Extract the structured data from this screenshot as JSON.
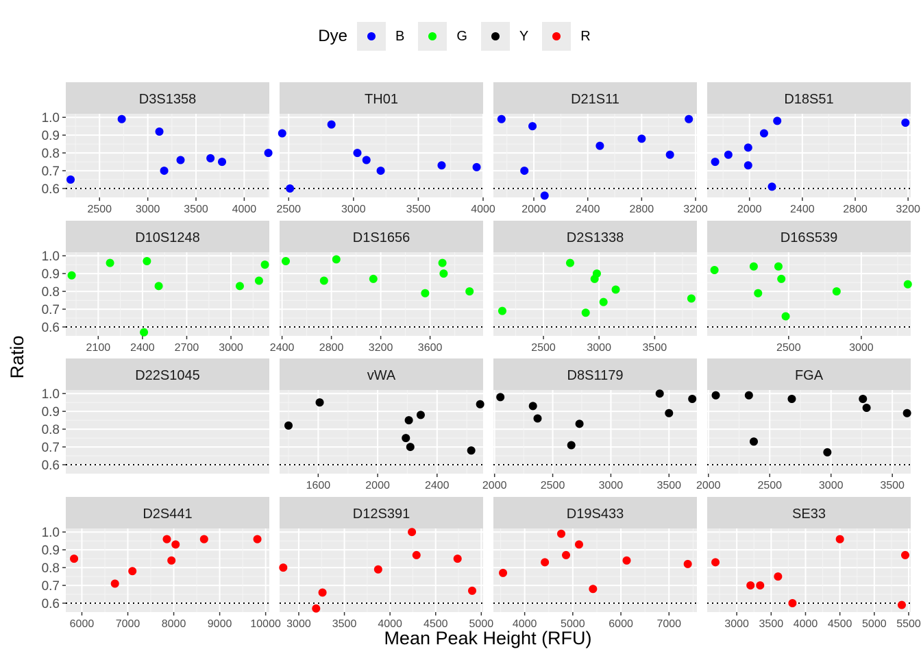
{
  "chart_data": {
    "type": "scatter",
    "xlabel": "Mean Peak Height (RFU)",
    "ylabel": "Ratio",
    "threshold": 0.6,
    "ylim": [
      0.55,
      1.02
    ],
    "yticks": [
      0.6,
      0.7,
      0.8,
      0.9,
      1.0
    ],
    "ytick_labels": [
      "0.6",
      "0.7",
      "0.8",
      "0.9",
      "1.0"
    ],
    "legend": {
      "title": "Dye",
      "position": "top",
      "items": [
        {
          "label": "B",
          "color": "#0000ff"
        },
        {
          "label": "G",
          "color": "#00ff00"
        },
        {
          "label": "Y",
          "color": "#000000"
        },
        {
          "label": "R",
          "color": "#ff0000"
        }
      ]
    },
    "panels": [
      {
        "title": "D3S1358",
        "dye": "B",
        "xlim": [
          2150,
          4260
        ],
        "xticks": [
          2500,
          3000,
          3500,
          4000
        ],
        "xtick_labels": [
          "2500",
          "3000",
          "3500",
          "4000"
        ],
        "points": [
          [
            2200,
            0.65
          ],
          [
            2730,
            0.99
          ],
          [
            3120,
            0.92
          ],
          [
            3170,
            0.7
          ],
          [
            3340,
            0.76
          ],
          [
            3650,
            0.77
          ],
          [
            3770,
            0.75
          ],
          [
            4250,
            0.8
          ]
        ]
      },
      {
        "title": "TH01",
        "dye": "B",
        "xlim": [
          2430,
          4000
        ],
        "xticks": [
          2500,
          3000,
          3500,
          4000
        ],
        "xtick_labels": [
          "2500",
          "3000",
          "3500",
          "4000"
        ],
        "points": [
          [
            2450,
            0.91
          ],
          [
            2510,
            0.6
          ],
          [
            2830,
            0.96
          ],
          [
            3030,
            0.8
          ],
          [
            3100,
            0.76
          ],
          [
            3210,
            0.7
          ],
          [
            3680,
            0.73
          ],
          [
            3950,
            0.72
          ]
        ]
      },
      {
        "title": "D21S11",
        "dye": "B",
        "xlim": [
          1700,
          3210
        ],
        "xticks": [
          2000,
          2400,
          2800,
          3200
        ],
        "xtick_labels": [
          "2000",
          "2400",
          "2800",
          "3200"
        ],
        "points": [
          [
            1760,
            0.99
          ],
          [
            1930,
            0.7
          ],
          [
            1990,
            0.95
          ],
          [
            2080,
            0.56
          ],
          [
            2490,
            0.84
          ],
          [
            2800,
            0.88
          ],
          [
            3010,
            0.79
          ],
          [
            3150,
            0.99
          ]
        ]
      },
      {
        "title": "D18S51",
        "dye": "B",
        "xlim": [
          1680,
          3220
        ],
        "xticks": [
          2000,
          2400,
          2800,
          3200
        ],
        "xtick_labels": [
          "2000",
          "2400",
          "2800",
          "3200"
        ],
        "points": [
          [
            1740,
            0.75
          ],
          [
            1840,
            0.79
          ],
          [
            1990,
            0.83
          ],
          [
            1990,
            0.73
          ],
          [
            2110,
            0.91
          ],
          [
            2170,
            0.61
          ],
          [
            2210,
            0.98
          ],
          [
            3180,
            0.97
          ]
        ]
      },
      {
        "title": "D10S1248",
        "dye": "G",
        "xlim": [
          1880,
          3260
        ],
        "xticks": [
          2100,
          2400,
          2700,
          3000
        ],
        "xtick_labels": [
          "2100",
          "2400",
          "2700",
          "3000"
        ],
        "points": [
          [
            1920,
            0.89
          ],
          [
            2180,
            0.96
          ],
          [
            2410,
            0.57
          ],
          [
            2430,
            0.97
          ],
          [
            2510,
            0.83
          ],
          [
            3060,
            0.83
          ],
          [
            3190,
            0.86
          ],
          [
            3230,
            0.95
          ]
        ]
      },
      {
        "title": "D1S1656",
        "dye": "G",
        "xlim": [
          2380,
          4030
        ],
        "xticks": [
          2400,
          2800,
          3200,
          3600
        ],
        "xtick_labels": [
          "2400",
          "2800",
          "3200",
          "3600"
        ],
        "points": [
          [
            2430,
            0.97
          ],
          [
            2740,
            0.86
          ],
          [
            2840,
            0.98
          ],
          [
            3140,
            0.87
          ],
          [
            3560,
            0.79
          ],
          [
            3700,
            0.96
          ],
          [
            3710,
            0.9
          ],
          [
            3920,
            0.8
          ]
        ]
      },
      {
        "title": "D2S1338",
        "dye": "G",
        "xlim": [
          2050,
          3880
        ],
        "xticks": [
          2500,
          3000,
          3500
        ],
        "xtick_labels": [
          "2500",
          "3000",
          "3500"
        ],
        "points": [
          [
            2130,
            0.69
          ],
          [
            2740,
            0.96
          ],
          [
            2880,
            0.68
          ],
          [
            2960,
            0.87
          ],
          [
            2980,
            0.9
          ],
          [
            3040,
            0.74
          ],
          [
            3150,
            0.81
          ],
          [
            3830,
            0.76
          ]
        ]
      },
      {
        "title": "D16S539",
        "dye": "G",
        "xlim": [
          1940,
          3340
        ],
        "xticks": [
          2500,
          3000
        ],
        "xtick_labels": [
          "2500",
          "3000"
        ],
        "points": [
          [
            1990,
            0.92
          ],
          [
            2260,
            0.94
          ],
          [
            2290,
            0.79
          ],
          [
            2430,
            0.94
          ],
          [
            2450,
            0.87
          ],
          [
            2480,
            0.66
          ],
          [
            2830,
            0.8
          ],
          [
            3320,
            0.84
          ]
        ]
      },
      {
        "title": "D22S1045",
        "dye": "Y",
        "xlim": null,
        "xticks": [],
        "xtick_labels": [],
        "points": []
      },
      {
        "title": "vWA",
        "dye": "Y",
        "xlim": [
          1340,
          2710
        ],
        "xticks": [
          1600,
          2000,
          2400
        ],
        "xtick_labels": [
          "1600",
          "2000",
          "2400"
        ],
        "points": [
          [
            1400,
            0.82
          ],
          [
            1610,
            0.95
          ],
          [
            2190,
            0.75
          ],
          [
            2210,
            0.85
          ],
          [
            2220,
            0.7
          ],
          [
            2290,
            0.88
          ],
          [
            2630,
            0.68
          ],
          [
            2690,
            0.94
          ]
        ]
      },
      {
        "title": "D8S1179",
        "dye": "Y",
        "xlim": [
          1990,
          3740
        ],
        "xticks": [
          2000,
          2500,
          3000,
          3500
        ],
        "xtick_labels": [
          "2000",
          "2500",
          "3000",
          "3500"
        ],
        "points": [
          [
            2050,
            0.98
          ],
          [
            2330,
            0.93
          ],
          [
            2370,
            0.86
          ],
          [
            2660,
            0.71
          ],
          [
            2730,
            0.83
          ],
          [
            3420,
            1.0
          ],
          [
            3500,
            0.89
          ],
          [
            3700,
            0.97
          ]
        ]
      },
      {
        "title": "FGA",
        "dye": "Y",
        "xlim": [
          1990,
          3650
        ],
        "xticks": [
          2000,
          2500,
          3000,
          3500
        ],
        "xtick_labels": [
          "2000",
          "2500",
          "3000",
          "3500"
        ],
        "points": [
          [
            2060,
            0.99
          ],
          [
            2330,
            0.99
          ],
          [
            2370,
            0.73
          ],
          [
            2680,
            0.97
          ],
          [
            2970,
            0.67
          ],
          [
            3260,
            0.97
          ],
          [
            3290,
            0.92
          ],
          [
            3620,
            0.89
          ]
        ]
      },
      {
        "title": "D2S441",
        "dye": "R",
        "xlim": [
          5650,
          10080
        ],
        "xticks": [
          6000,
          7000,
          8000,
          9000,
          10000
        ],
        "xtick_labels": [
          "6000",
          "7000",
          "8000",
          "9000",
          "10000"
        ],
        "points": [
          [
            5830,
            0.85
          ],
          [
            6720,
            0.71
          ],
          [
            7100,
            0.78
          ],
          [
            7850,
            0.96
          ],
          [
            7950,
            0.84
          ],
          [
            8040,
            0.93
          ],
          [
            8660,
            0.96
          ],
          [
            9820,
            0.96
          ]
        ]
      },
      {
        "title": "D12S391",
        "dye": "R",
        "xlim": [
          2790,
          5020
        ],
        "xticks": [
          3000,
          3500,
          4000,
          4500,
          5000
        ],
        "xtick_labels": [
          "3000",
          "3500",
          "4000",
          "4500",
          "5000"
        ],
        "points": [
          [
            2830,
            0.8
          ],
          [
            3190,
            0.57
          ],
          [
            3260,
            0.66
          ],
          [
            3870,
            0.79
          ],
          [
            4240,
            1.0
          ],
          [
            4290,
            0.87
          ],
          [
            4740,
            0.85
          ],
          [
            4900,
            0.67
          ]
        ]
      },
      {
        "title": "D19S433",
        "dye": "R",
        "xlim": [
          3350,
          7580
        ],
        "xticks": [
          4000,
          5000,
          6000,
          7000
        ],
        "xtick_labels": [
          "4000",
          "5000",
          "6000",
          "7000"
        ],
        "points": [
          [
            3550,
            0.77
          ],
          [
            4420,
            0.83
          ],
          [
            4760,
            0.99
          ],
          [
            4860,
            0.87
          ],
          [
            5130,
            0.93
          ],
          [
            5420,
            0.68
          ],
          [
            6120,
            0.84
          ],
          [
            7390,
            0.82
          ]
        ]
      },
      {
        "title": "SE33",
        "dye": "R",
        "xlim": [
          2570,
          5530
        ],
        "xticks": [
          3000,
          3500,
          4000,
          4500,
          5000,
          5500
        ],
        "xtick_labels": [
          "3000",
          "3500",
          "4000",
          "4500",
          "5000",
          "5500"
        ],
        "points": [
          [
            2690,
            0.83
          ],
          [
            3200,
            0.7
          ],
          [
            3340,
            0.7
          ],
          [
            3600,
            0.75
          ],
          [
            3810,
            0.6
          ],
          [
            4500,
            0.96
          ],
          [
            5400,
            0.59
          ],
          [
            5450,
            0.87
          ]
        ]
      }
    ]
  }
}
